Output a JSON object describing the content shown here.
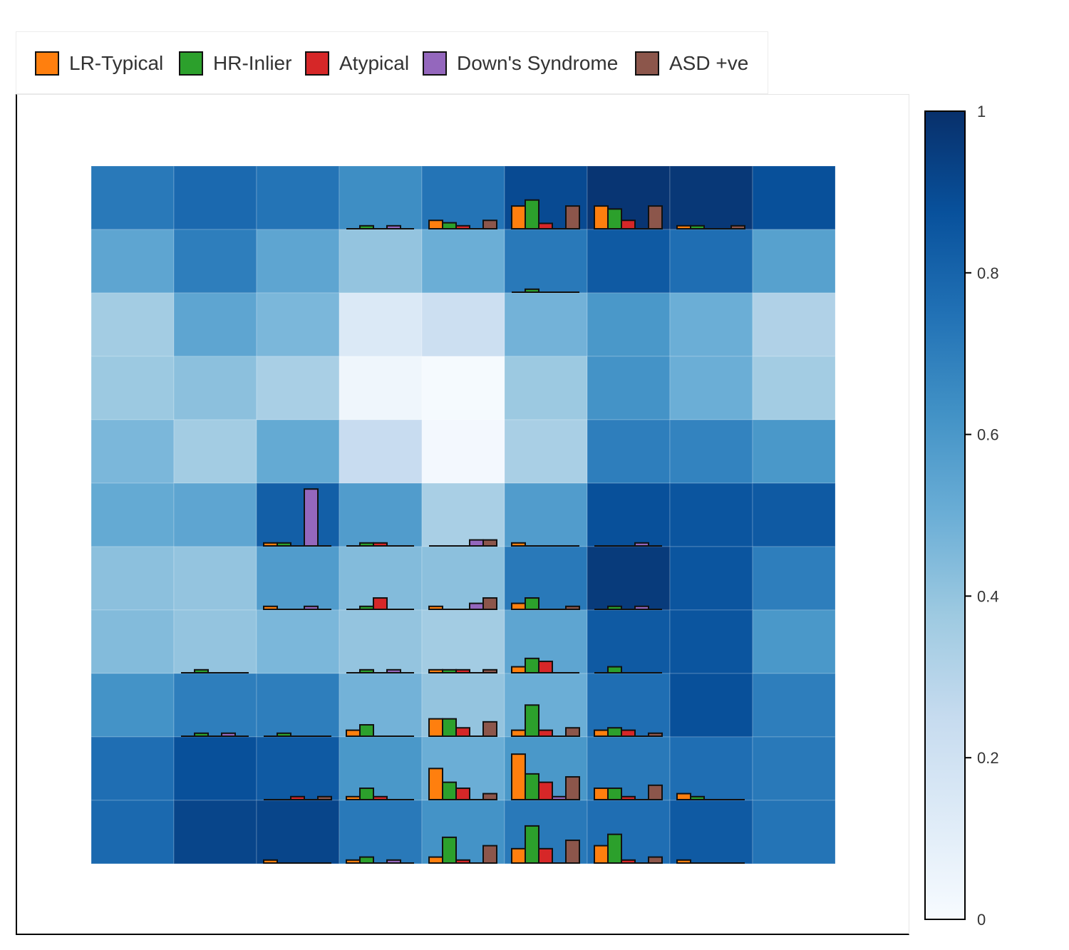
{
  "chart_data": {
    "type": "heatmap",
    "title": "",
    "xlabel": "",
    "ylabel": "",
    "grid": {
      "rows": 11,
      "cols": 9
    },
    "heatmap_values": [
      [
        0.72,
        0.78,
        0.74,
        0.64,
        0.74,
        0.9,
        0.98,
        0.97,
        0.88
      ],
      [
        0.54,
        0.7,
        0.54,
        0.4,
        0.5,
        0.72,
        0.84,
        0.76,
        0.56
      ],
      [
        0.36,
        0.54,
        0.46,
        0.14,
        0.22,
        0.48,
        0.6,
        0.5,
        0.32
      ],
      [
        0.38,
        0.42,
        0.34,
        0.04,
        0.01,
        0.38,
        0.62,
        0.5,
        0.36
      ],
      [
        0.46,
        0.36,
        0.52,
        0.24,
        0.02,
        0.34,
        0.7,
        0.68,
        0.6
      ],
      [
        0.52,
        0.54,
        0.82,
        0.58,
        0.34,
        0.58,
        0.88,
        0.86,
        0.84
      ],
      [
        0.42,
        0.4,
        0.58,
        0.44,
        0.42,
        0.72,
        0.96,
        0.86,
        0.7
      ],
      [
        0.44,
        0.4,
        0.46,
        0.4,
        0.36,
        0.54,
        0.84,
        0.86,
        0.6
      ],
      [
        0.62,
        0.7,
        0.7,
        0.48,
        0.4,
        0.5,
        0.76,
        0.88,
        0.7
      ],
      [
        0.76,
        0.88,
        0.84,
        0.6,
        0.5,
        0.6,
        0.72,
        0.76,
        0.72
      ],
      [
        0.78,
        0.92,
        0.92,
        0.72,
        0.62,
        0.72,
        0.76,
        0.84,
        0.74
      ]
    ],
    "bar_series": [
      "LR-Typical",
      "HR-Inlier",
      "Atypical",
      "Down's Syndrome",
      "ASD +ve"
    ],
    "bar_values": [
      [
        [
          0,
          0,
          0,
          0,
          0
        ],
        [
          0,
          0,
          0,
          0,
          0
        ],
        [
          0,
          0,
          0,
          0,
          0
        ],
        [
          0,
          0.05,
          0,
          0.05,
          0
        ],
        [
          0.14,
          0.1,
          0.05,
          0,
          0.14
        ],
        [
          0.38,
          0.48,
          0.09,
          0,
          0.38
        ],
        [
          0.38,
          0.33,
          0.14,
          0,
          0.38
        ],
        [
          0.05,
          0.05,
          0,
          0,
          0.05
        ],
        [
          0,
          0,
          0,
          0,
          0
        ]
      ],
      [
        [
          0,
          0,
          0,
          0,
          0
        ],
        [
          0,
          0,
          0,
          0,
          0
        ],
        [
          0,
          0,
          0,
          0,
          0
        ],
        [
          0,
          0,
          0,
          0,
          0
        ],
        [
          0,
          0,
          0,
          0,
          0
        ],
        [
          0,
          0.05,
          0,
          0,
          0
        ],
        [
          0,
          0,
          0,
          0,
          0
        ],
        [
          0,
          0,
          0,
          0,
          0
        ],
        [
          0,
          0,
          0,
          0,
          0
        ]
      ],
      [
        [
          0,
          0,
          0,
          0,
          0
        ],
        [
          0,
          0,
          0,
          0,
          0
        ],
        [
          0,
          0,
          0,
          0,
          0
        ],
        [
          0,
          0,
          0,
          0,
          0
        ],
        [
          0,
          0,
          0,
          0,
          0
        ],
        [
          0,
          0,
          0,
          0,
          0
        ],
        [
          0,
          0,
          0,
          0,
          0
        ],
        [
          0,
          0,
          0,
          0,
          0
        ],
        [
          0,
          0,
          0,
          0,
          0
        ]
      ],
      [
        [
          0,
          0,
          0,
          0,
          0
        ],
        [
          0,
          0,
          0,
          0,
          0
        ],
        [
          0,
          0,
          0,
          0,
          0
        ],
        [
          0,
          0,
          0,
          0,
          0
        ],
        [
          0,
          0,
          0,
          0,
          0
        ],
        [
          0,
          0,
          0,
          0,
          0
        ],
        [
          0,
          0,
          0,
          0,
          0
        ],
        [
          0,
          0,
          0,
          0,
          0
        ],
        [
          0,
          0,
          0,
          0,
          0
        ]
      ],
      [
        [
          0,
          0,
          0,
          0,
          0
        ],
        [
          0,
          0,
          0,
          0,
          0
        ],
        [
          0,
          0,
          0,
          0,
          0
        ],
        [
          0,
          0,
          0,
          0,
          0
        ],
        [
          0,
          0,
          0,
          0,
          0
        ],
        [
          0,
          0,
          0,
          0,
          0
        ],
        [
          0,
          0,
          0,
          0,
          0
        ],
        [
          0,
          0,
          0,
          0,
          0
        ],
        [
          0,
          0,
          0,
          0,
          0
        ]
      ],
      [
        [
          0,
          0,
          0,
          0,
          0
        ],
        [
          0,
          0,
          0,
          0,
          0
        ],
        [
          0.05,
          0.05,
          0,
          0.95,
          0
        ],
        [
          0,
          0.05,
          0.05,
          0,
          0
        ],
        [
          0,
          0,
          0,
          0.1,
          0.1
        ],
        [
          0.05,
          0,
          0,
          0,
          0
        ],
        [
          0,
          0,
          0,
          0.05,
          0
        ],
        [
          0,
          0,
          0,
          0,
          0
        ],
        [
          0,
          0,
          0,
          0,
          0
        ]
      ],
      [
        [
          0,
          0,
          0,
          0,
          0
        ],
        [
          0,
          0,
          0,
          0,
          0
        ],
        [
          0.05,
          0,
          0,
          0.05,
          0
        ],
        [
          0,
          0.05,
          0.19,
          0,
          0
        ],
        [
          0.05,
          0,
          0,
          0.1,
          0.19
        ],
        [
          0.1,
          0.19,
          0,
          0,
          0.05
        ],
        [
          0,
          0.05,
          0,
          0.05,
          0
        ],
        [
          0,
          0,
          0,
          0,
          0
        ],
        [
          0,
          0,
          0,
          0,
          0
        ]
      ],
      [
        [
          0,
          0,
          0,
          0,
          0
        ],
        [
          0,
          0.05,
          0,
          0,
          0
        ],
        [
          0,
          0,
          0,
          0,
          0
        ],
        [
          0,
          0.05,
          0,
          0.05,
          0
        ],
        [
          0.05,
          0.05,
          0.05,
          0,
          0.05
        ],
        [
          0.1,
          0.24,
          0.19,
          0,
          0
        ],
        [
          0,
          0.1,
          0,
          0,
          0
        ],
        [
          0,
          0,
          0,
          0,
          0
        ],
        [
          0,
          0,
          0,
          0,
          0
        ]
      ],
      [
        [
          0,
          0,
          0,
          0,
          0
        ],
        [
          0,
          0.05,
          0,
          0.05,
          0
        ],
        [
          0,
          0.05,
          0,
          0,
          0
        ],
        [
          0.1,
          0.19,
          0,
          0,
          0
        ],
        [
          0.29,
          0.29,
          0.14,
          0,
          0.24
        ],
        [
          0.1,
          0.52,
          0.1,
          0,
          0.14
        ],
        [
          0.1,
          0.14,
          0.1,
          0,
          0.05
        ],
        [
          0,
          0,
          0,
          0,
          0
        ],
        [
          0,
          0,
          0,
          0,
          0
        ]
      ],
      [
        [
          0,
          0,
          0,
          0,
          0
        ],
        [
          0,
          0,
          0,
          0,
          0
        ],
        [
          0,
          0,
          0.05,
          0,
          0.05
        ],
        [
          0.05,
          0.19,
          0.05,
          0,
          0
        ],
        [
          0.52,
          0.29,
          0.19,
          0,
          0.1
        ],
        [
          0.76,
          0.43,
          0.29,
          0.05,
          0.38
        ],
        [
          0.19,
          0.19,
          0.05,
          0,
          0.24
        ],
        [
          0.1,
          0.05,
          0,
          0,
          0
        ],
        [
          0,
          0,
          0,
          0,
          0
        ]
      ],
      [
        [
          0,
          0,
          0,
          0,
          0
        ],
        [
          0,
          0,
          0,
          0,
          0
        ],
        [
          0.05,
          0,
          0,
          0,
          0
        ],
        [
          0.05,
          0.1,
          0,
          0.05,
          0
        ],
        [
          0.1,
          0.43,
          0.05,
          0,
          0.29
        ],
        [
          0.24,
          0.62,
          0.24,
          0,
          0.38
        ],
        [
          0.29,
          0.48,
          0.05,
          0,
          0.1
        ],
        [
          0.05,
          0,
          0,
          0,
          0
        ],
        [
          0,
          0,
          0,
          0,
          0
        ]
      ]
    ],
    "colorbar": {
      "min": 0,
      "max": 1,
      "ticks": [
        "0",
        "0.2",
        "0.4",
        "0.6",
        "0.8",
        "1"
      ]
    },
    "legend": {
      "placement": "top",
      "entries": [
        {
          "label": "LR-Typical",
          "color": "#ff7f0e"
        },
        {
          "label": "HR-Inlier",
          "color": "#2ca02c"
        },
        {
          "label": "Atypical",
          "color": "#d62728"
        },
        {
          "label": "Down's Syndrome",
          "color": "#9467bd"
        },
        {
          "label": "ASD +ve",
          "color": "#8c564b"
        }
      ]
    },
    "colorscale": "Blues"
  }
}
